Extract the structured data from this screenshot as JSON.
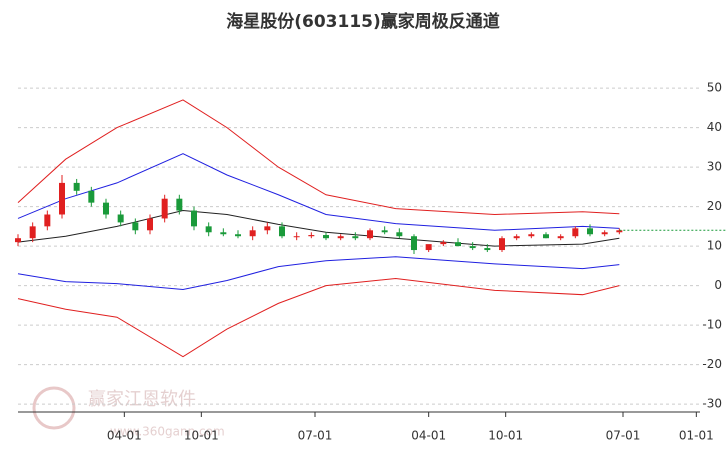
{
  "chart_data": {
    "type": "candlestick",
    "title": "海星股份(603115)赢家周极反通道",
    "watermark": "赢家江恩软件",
    "watermark_url": "www.360gann.com",
    "xlim": [
      0,
      186
    ],
    "xticks": [
      {
        "value": 29,
        "label": "04-01"
      },
      {
        "value": 50,
        "label": "10-01"
      },
      {
        "value": 81,
        "label": "07-01"
      },
      {
        "value": 112,
        "label": "04-01"
      },
      {
        "value": 133,
        "label": "10-01"
      },
      {
        "value": 165,
        "label": "07-01"
      },
      {
        "value": 185,
        "label": "01-01"
      }
    ],
    "ylim": [
      -32,
      60
    ],
    "yticks": [
      -30,
      -20,
      -10,
      0,
      10,
      20,
      30,
      40,
      50
    ],
    "grid": true,
    "up_color": "#e02020",
    "down_color": "#1a9a3a",
    "last_price_color": "#1a9a3a",
    "candles": {
      "x": [
        0,
        4,
        8,
        12,
        16,
        20,
        24,
        28,
        32,
        36,
        40,
        44,
        48,
        52,
        56,
        60,
        64,
        68,
        72,
        76,
        80,
        84,
        88,
        92,
        96,
        100,
        104,
        108,
        112,
        116,
        120,
        124,
        128,
        132,
        136,
        140,
        144,
        148,
        152,
        156,
        160,
        164
      ],
      "open": [
        11,
        12,
        15,
        18,
        26,
        24,
        21,
        18,
        16,
        14,
        17,
        22,
        19,
        15,
        13.5,
        13,
        12.5,
        14,
        15,
        12.5,
        12.5,
        12.8,
        12,
        12.5,
        12,
        14,
        13.5,
        12.5,
        9,
        10.5,
        11,
        10,
        9.5,
        9,
        12,
        12.5,
        13,
        12,
        12.5,
        14.5,
        13,
        13.5
      ],
      "high": [
        13,
        16,
        19,
        28,
        27,
        25,
        22,
        19,
        17,
        18,
        23,
        23,
        20,
        16,
        14.5,
        14,
        15,
        16,
        16,
        13.5,
        13.5,
        13.5,
        13,
        13.5,
        14.5,
        15,
        14.5,
        13,
        10,
        11.5,
        12,
        11,
        10.5,
        12.5,
        13,
        13.5,
        13.5,
        13,
        15,
        15.5,
        14,
        14.5
      ],
      "low": [
        10,
        11,
        14,
        17,
        23,
        20,
        17,
        15,
        13,
        13,
        16,
        18,
        14,
        12.5,
        12.5,
        12,
        11.5,
        13,
        12,
        11.5,
        12,
        11.5,
        11.5,
        11.5,
        11.5,
        13,
        12,
        8,
        8.5,
        10,
        10,
        9,
        8.5,
        8.5,
        11.5,
        12,
        12,
        11.5,
        12,
        12.5,
        12.5,
        13
      ],
      "close": [
        12,
        15,
        18,
        26,
        24,
        21,
        18,
        16,
        14,
        17,
        22,
        19,
        15,
        13.5,
        13,
        12.5,
        14,
        15,
        12.5,
        12.5,
        12.8,
        12,
        12.5,
        12,
        14,
        13.5,
        12.5,
        9,
        10.5,
        11,
        10,
        9.5,
        9,
        12,
        12.5,
        13,
        12,
        12.5,
        14.5,
        13,
        13.5,
        14
      ]
    },
    "lines": [
      {
        "color": "#e02020",
        "x": [
          0,
          13,
          27,
          45,
          57,
          71,
          84,
          103,
          130,
          154,
          164
        ],
        "values": [
          21,
          32,
          40,
          47,
          40,
          30,
          23,
          19.5,
          18,
          18.7,
          18.2
        ]
      },
      {
        "color": "#2020e0",
        "x": [
          0,
          13,
          27,
          45,
          57,
          71,
          84,
          103,
          130,
          154,
          164
        ],
        "values": [
          17,
          22,
          26,
          33.4,
          28,
          23,
          18,
          15.7,
          14,
          15,
          14.5
        ]
      },
      {
        "color": "#222222",
        "x": [
          0,
          13,
          27,
          45,
          57,
          71,
          84,
          103,
          130,
          154,
          164
        ],
        "values": [
          11,
          12.5,
          15,
          19,
          18,
          15.5,
          13.5,
          12,
          10,
          10.5,
          12
        ]
      },
      {
        "color": "#2020e0",
        "x": [
          0,
          13,
          27,
          45,
          57,
          71,
          84,
          103,
          130,
          154,
          164
        ],
        "values": [
          3,
          1,
          0.5,
          -1,
          1.3,
          4.8,
          6.3,
          7.3,
          5.5,
          4.3,
          5.3
        ]
      },
      {
        "color": "#e02020",
        "x": [
          0,
          13,
          27,
          45,
          57,
          71,
          84,
          103,
          130,
          154,
          164
        ],
        "values": [
          -3.3,
          -6,
          -8,
          -18,
          -11,
          -4.5,
          0,
          1.8,
          -1.2,
          -2.3,
          0
        ]
      }
    ]
  }
}
